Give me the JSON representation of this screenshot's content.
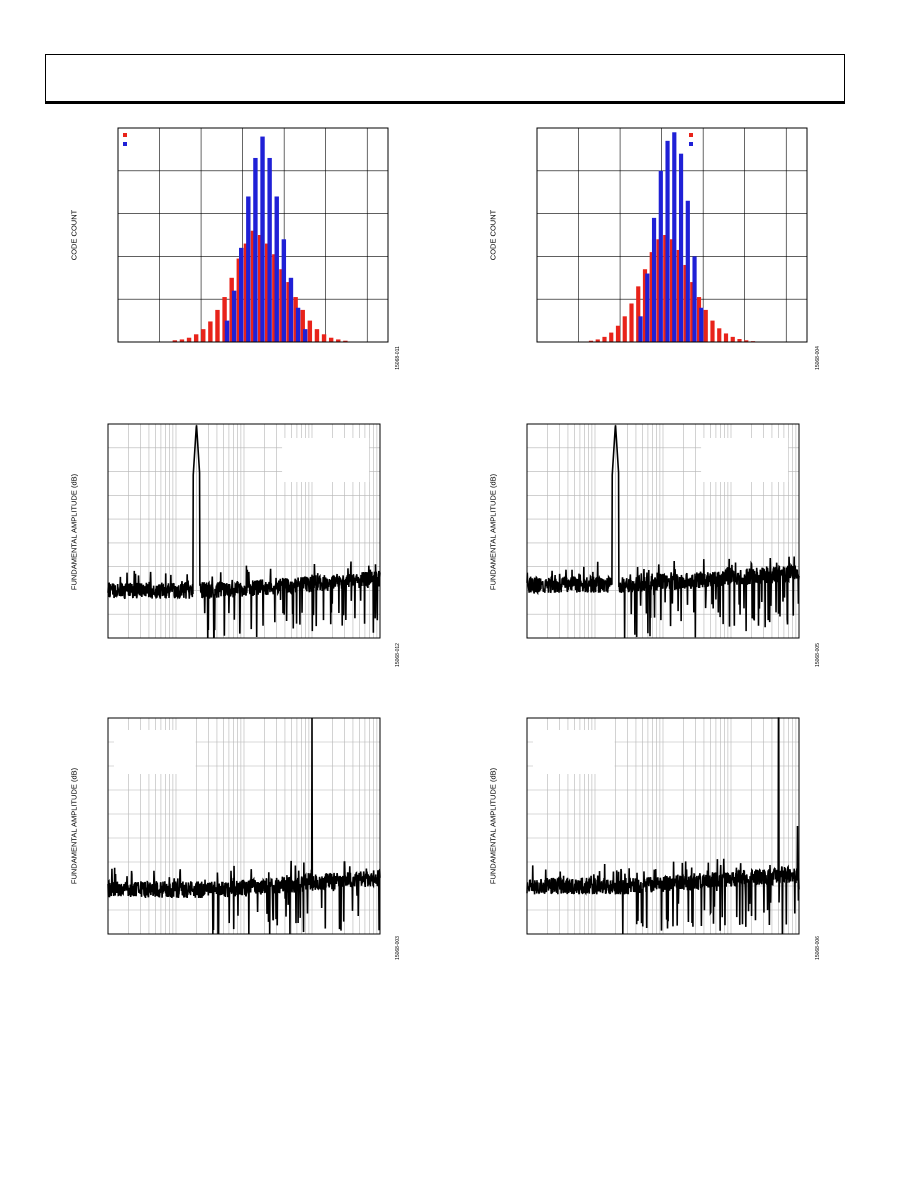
{
  "page": {
    "header_title": ""
  },
  "chart_data": [
    {
      "type": "bar",
      "ylabel": "CODE COUNT",
      "figure_id": "15068-011",
      "legend": [
        {
          "color": "#e8231a"
        },
        {
          "color": "#1f20d6"
        }
      ],
      "ylim": [
        0,
        5
      ],
      "xlim": [
        0,
        38
      ],
      "grid": true,
      "series": [
        {
          "color": "#e8231a",
          "x": [
            8,
            9,
            10,
            11,
            12,
            13,
            14,
            15,
            16,
            17,
            18,
            19,
            20,
            21,
            22,
            23,
            24,
            25,
            26,
            27,
            28,
            29,
            30,
            31,
            32
          ],
          "values": [
            0.04,
            0.06,
            0.1,
            0.18,
            0.3,
            0.48,
            0.75,
            1.05,
            1.5,
            1.95,
            2.3,
            2.6,
            2.5,
            2.3,
            2.05,
            1.7,
            1.4,
            1.05,
            0.75,
            0.5,
            0.3,
            0.18,
            0.1,
            0.06,
            0.03
          ]
        },
        {
          "color": "#1f20d6",
          "x": [
            15,
            16,
            17,
            18,
            19,
            20,
            21,
            22,
            23,
            24,
            25,
            26
          ],
          "values": [
            0.5,
            1.2,
            2.2,
            3.4,
            4.3,
            4.8,
            4.3,
            3.4,
            2.4,
            1.5,
            0.8,
            0.3
          ]
        }
      ]
    },
    {
      "type": "bar",
      "ylabel": "CODE COUNT",
      "figure_id": "15068-004",
      "legend": [
        {
          "color": "#e8231a"
        },
        {
          "color": "#1f20d6"
        }
      ],
      "ylim": [
        0,
        5
      ],
      "xlim": [
        0,
        40
      ],
      "grid": true,
      "series": [
        {
          "color": "#e8231a",
          "x": [
            8,
            9,
            10,
            11,
            12,
            13,
            14,
            15,
            16,
            17,
            18,
            19,
            20,
            21,
            22,
            23,
            24,
            25,
            26,
            27,
            28,
            29,
            30,
            31,
            32,
            33
          ],
          "values": [
            0.03,
            0.06,
            0.12,
            0.22,
            0.38,
            0.6,
            0.9,
            1.3,
            1.7,
            2.1,
            2.4,
            2.5,
            2.4,
            2.15,
            1.8,
            1.4,
            1.05,
            0.75,
            0.5,
            0.32,
            0.2,
            0.12,
            0.07,
            0.04,
            0.02,
            0.01
          ]
        },
        {
          "color": "#1f20d6",
          "x": [
            15,
            16,
            17,
            18,
            19,
            20,
            21,
            22,
            23,
            24
          ],
          "values": [
            0.6,
            1.6,
            2.9,
            4.0,
            4.7,
            4.9,
            4.4,
            3.3,
            2.0,
            0.8
          ]
        }
      ]
    },
    {
      "type": "line",
      "ylabel": "FUNDAMENTAL AMPLITUDE (dB)",
      "figure_id": "15068-012",
      "xscale": "log",
      "xlim": [
        1,
        10000
      ],
      "ylim": [
        -180,
        0
      ],
      "grid": true,
      "noise_floor_db": -140,
      "peaks": [
        {
          "x": 20,
          "y": 0
        }
      ]
    },
    {
      "type": "line",
      "ylabel": "FUNDAMENTAL AMPLITUDE (dB)",
      "figure_id": "15068-005",
      "xscale": "log",
      "xlim": [
        1,
        10000
      ],
      "ylim": [
        -180,
        0
      ],
      "grid": true,
      "noise_floor_db": -135,
      "peaks": [
        {
          "x": 20,
          "y": 0
        }
      ]
    },
    {
      "type": "line",
      "ylabel": "FUNDAMENTAL AMPLITUDE (dB)",
      "figure_id": "15068-003",
      "xscale": "log",
      "xlim": [
        1,
        10000
      ],
      "ylim": [
        -180,
        0
      ],
      "grid": true,
      "noise_floor_db": -143,
      "peaks": [
        {
          "x": 1000,
          "y": 0
        },
        {
          "x": 3000,
          "y": -120
        },
        {
          "x": 2000,
          "y": -133
        },
        {
          "x": 5000,
          "y": -135
        }
      ]
    },
    {
      "type": "line",
      "ylabel": "FUNDAMENTAL AMPLITUDE (dB)",
      "figure_id": "15068-006",
      "xscale": "log",
      "xlim": [
        1,
        10000
      ],
      "ylim": [
        -180,
        0
      ],
      "grid": true,
      "noise_floor_db": -140,
      "peaks": [
        {
          "x": 5000,
          "y": 0
        },
        {
          "x": 9500,
          "y": -90
        }
      ]
    }
  ]
}
